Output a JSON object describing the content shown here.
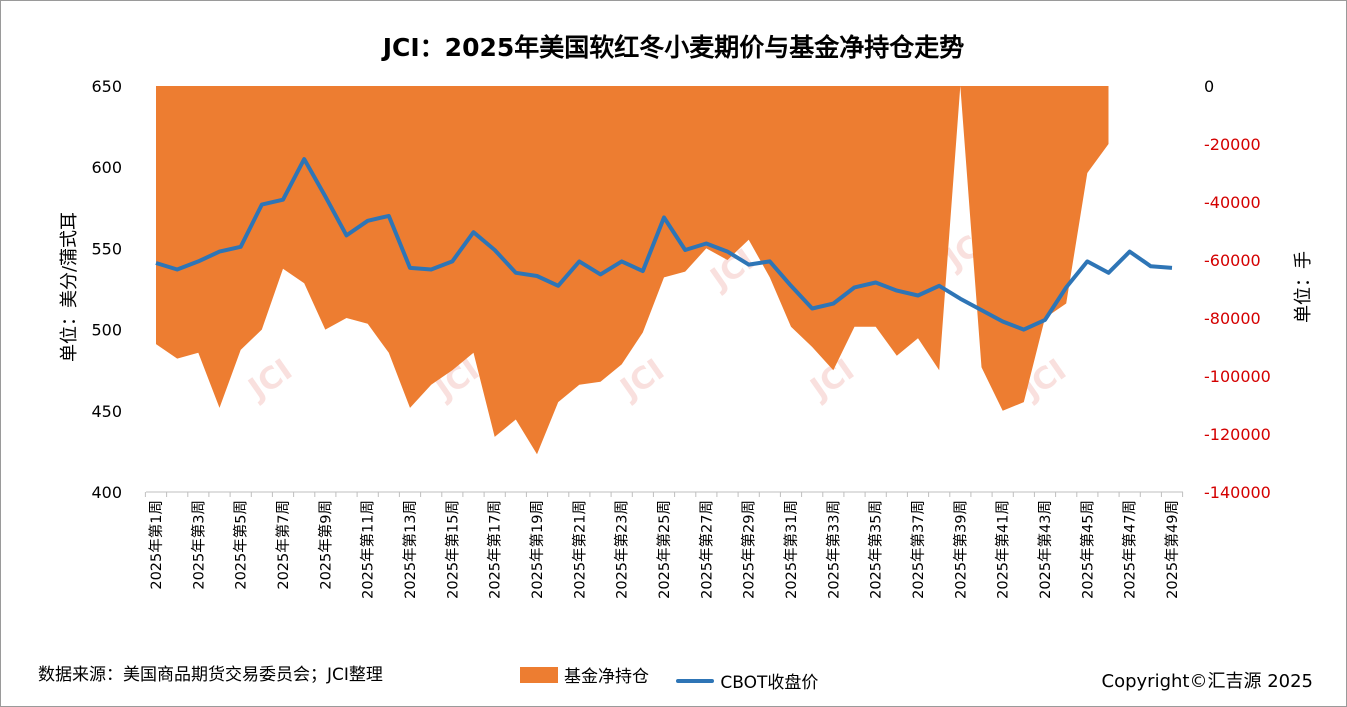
{
  "chart_data": {
    "type": "area+line",
    "title": "JCI：2025年美国软红冬小麦期价与基金净持仓走势",
    "ylabel_left": "单位：美分/蒲式耳",
    "ylabel_right": "单位：手",
    "ylim_left": [
      400,
      650
    ],
    "yticks_left": [
      "650",
      "600",
      "550",
      "500",
      "450",
      "400"
    ],
    "ylim_right": [
      -140000,
      0
    ],
    "yticks_right": [
      "0",
      "-20000",
      "-40000",
      "-60000",
      "-80000",
      "-100000",
      "-120000",
      "-140000"
    ],
    "x": [
      "2025年第1周",
      "2025年第2周",
      "2025年第3周",
      "2025年第4周",
      "2025年第5周",
      "2025年第6周",
      "2025年第7周",
      "2025年第8周",
      "2025年第9周",
      "2025年第10周",
      "2025年第11周",
      "2025年第12周",
      "2025年第13周",
      "2025年第14周",
      "2025年第15周",
      "2025年第16周",
      "2025年第17周",
      "2025年第18周",
      "2025年第19周",
      "2025年第20周",
      "2025年第21周",
      "2025年第22周",
      "2025年第23周",
      "2025年第24周",
      "2025年第25周",
      "2025年第26周",
      "2025年第27周",
      "2025年第28周",
      "2025年第29周",
      "2025年第30周",
      "2025年第31周",
      "2025年第32周",
      "2025年第33周",
      "2025年第34周",
      "2025年第35周",
      "2025年第36周",
      "2025年第37周",
      "2025年第38周",
      "2025年第39周",
      "2025年第40周",
      "2025年第41周",
      "2025年第42周",
      "2025年第43周",
      "2025年第44周",
      "2025年第45周",
      "2025年第46周",
      "2025年第47周",
      "2025年第48周",
      "2025年第49周"
    ],
    "x_tick_labels": [
      "2025年第1周",
      "2025年第3周",
      "2025年第5周",
      "2025年第7周",
      "2025年第9周",
      "2025年第11周",
      "2025年第13周",
      "2025年第15周",
      "2025年第17周",
      "2025年第19周",
      "2025年第21周",
      "2025年第23周",
      "2025年第25周",
      "2025年第27周",
      "2025年第29周",
      "2025年第31周",
      "2025年第33周",
      "2025年第35周",
      "2025年第37周",
      "2025年第39周",
      "2025年第41周",
      "2025年第43周",
      "2025年第45周",
      "2025年第47周",
      "2025年第49周"
    ],
    "series": [
      {
        "name": "基金净持仓",
        "type": "area",
        "axis": "right",
        "color": "#ED7D31",
        "values": [
          -89000,
          -94000,
          -92000,
          -111000,
          -91000,
          -84000,
          -63000,
          -68000,
          -84000,
          -80000,
          -82000,
          -92000,
          -111000,
          -103000,
          -98000,
          -92000,
          -121000,
          -115000,
          -127000,
          -109000,
          -103000,
          -102000,
          -96000,
          -85000,
          -66000,
          -64000,
          -56000,
          -60000,
          -53000,
          -66000,
          -83000,
          -90000,
          -98000,
          -83000,
          -83000,
          -93000,
          -87000,
          -98000,
          0,
          -97000,
          -112000,
          -109000,
          -80000,
          -75000,
          -30000,
          -20000,
          null,
          null,
          null
        ]
      },
      {
        "name": "CBOT收盘价",
        "type": "line",
        "axis": "left",
        "color": "#2E75B6",
        "values": [
          541,
          537,
          542,
          548,
          551,
          577,
          580,
          605,
          582,
          558,
          567,
          570,
          538,
          537,
          542,
          560,
          549,
          535,
          533,
          527,
          542,
          534,
          542,
          536,
          569,
          549,
          553,
          548,
          540,
          542,
          527,
          513,
          516,
          526,
          529,
          524,
          521,
          527,
          519,
          512,
          505,
          500,
          506,
          526,
          542,
          535,
          548,
          539,
          538
        ]
      }
    ]
  },
  "legend": {
    "area_label": "基金净持仓",
    "line_label": "CBOT收盘价"
  },
  "footer": {
    "source": "数据来源：美国商品期货交易委员会；JCI整理",
    "copyright": "Copyright©汇吉源 2025"
  },
  "watermark": "JCI"
}
